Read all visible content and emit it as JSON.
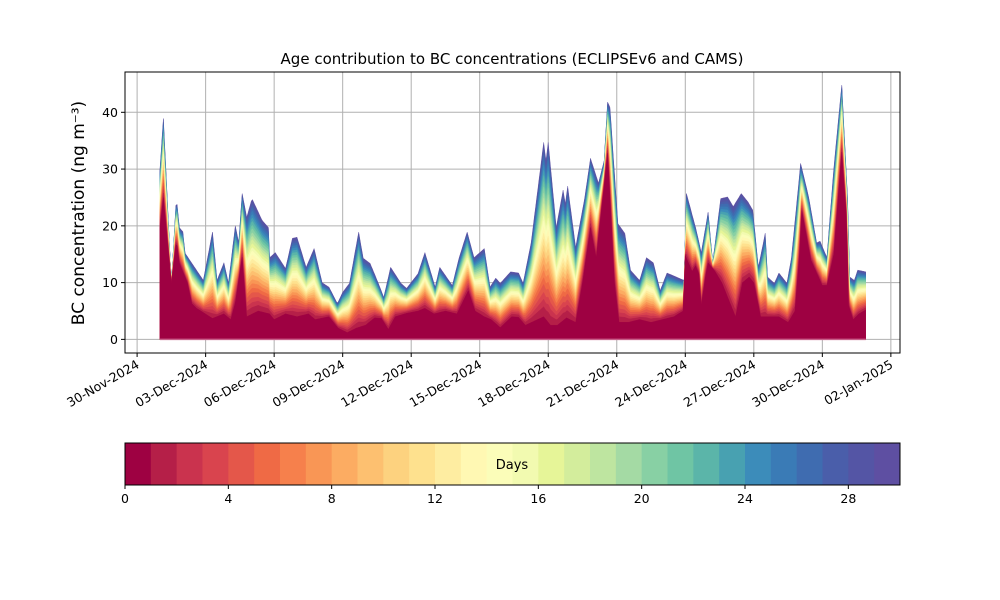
{
  "chart_data": {
    "type": "area",
    "stacked": true,
    "title": "Age contribution to BC concentrations (ECLIPSEv6 and CAMS)",
    "ylabel": "BC concentration (ng m⁻³)",
    "xlabel": "",
    "x_unit": "days since 30-Nov-2024",
    "xlim": [
      -0.53,
      33.4
    ],
    "ylim": [
      -2.4,
      47.1
    ],
    "grid": true,
    "x_ticks": [
      {
        "day": 0,
        "label": "30-Nov-2024"
      },
      {
        "day": 3,
        "label": "03-Dec-2024"
      },
      {
        "day": 6,
        "label": "06-Dec-2024"
      },
      {
        "day": 9,
        "label": "09-Dec-2024"
      },
      {
        "day": 12,
        "label": "12-Dec-2024"
      },
      {
        "day": 15,
        "label": "15-Dec-2024"
      },
      {
        "day": 18,
        "label": "18-Dec-2024"
      },
      {
        "day": 21,
        "label": "21-Dec-2024"
      },
      {
        "day": 24,
        "label": "24-Dec-2024"
      },
      {
        "day": 27,
        "label": "27-Dec-2024"
      },
      {
        "day": 30,
        "label": "30-Dec-2024"
      },
      {
        "day": 33,
        "label": "02-Jan-2025"
      }
    ],
    "y_ticks": [
      "0",
      "10",
      "20",
      "30",
      "40"
    ],
    "total": {
      "day": [
        1.0,
        1.15,
        1.5,
        1.72,
        1.85,
        2.0,
        2.1,
        2.6,
        2.9,
        3.3,
        3.5,
        3.8,
        4.0,
        4.3,
        4.45,
        4.6,
        4.8,
        5.03,
        5.47,
        5.75,
        5.8,
        6.05,
        6.5,
        6.8,
        7.0,
        7.4,
        7.75,
        8.1,
        8.4,
        8.77,
        9.0,
        9.3,
        9.7,
        9.9,
        10.2,
        10.55,
        10.8,
        11.1,
        11.55,
        11.8,
        12.3,
        12.6,
        13.05,
        13.25,
        13.8,
        14.1,
        14.45,
        14.75,
        15.2,
        15.45,
        15.7,
        15.9,
        16.35,
        16.7,
        16.9,
        17.25,
        17.8,
        17.9,
        18.0,
        18.35,
        18.65,
        18.75,
        18.85,
        19.2,
        19.6,
        19.85,
        20.2,
        20.45,
        20.6,
        20.7,
        21.05,
        21.35,
        21.6,
        22.0,
        22.3,
        22.6,
        22.9,
        23.2,
        23.6,
        23.95,
        24.05,
        24.45,
        24.7,
        25.0,
        25.2,
        25.55,
        25.85,
        26.1,
        26.45,
        26.75,
        26.95,
        27.2,
        27.5,
        27.6,
        27.9,
        28.1,
        28.45,
        28.65,
        29.05,
        29.4,
        29.75,
        29.9,
        30.2,
        30.5,
        30.85,
        31.1,
        31.2,
        31.4,
        31.55,
        31.9
      ],
      "value": [
        29.8,
        38.9,
        9.9,
        25,
        19.7,
        19,
        15.2,
        12.2,
        10.4,
        18.9,
        10.4,
        13.5,
        9.9,
        20,
        17,
        25.7,
        21.5,
        24.8,
        21,
        19.7,
        14.4,
        15.3,
        12.5,
        17.8,
        18,
        12.7,
        16,
        10,
        9.2,
        6.3,
        8.3,
        9.9,
        18.9,
        14.3,
        13.4,
        10,
        7.4,
        12.7,
        9.9,
        9,
        11.6,
        15.3,
        9.2,
        12.7,
        9.5,
        14.4,
        18.9,
        14.4,
        16,
        9.2,
        10.8,
        9.9,
        11.9,
        11.7,
        9.9,
        17,
        34.7,
        31.5,
        34.7,
        19.7,
        26.3,
        23.9,
        27,
        16.2,
        25,
        31.9,
        27.5,
        31.5,
        41.8,
        40.9,
        20.4,
        18.7,
        12.2,
        10.4,
        14.4,
        13.5,
        8.6,
        11.7,
        11,
        10.4,
        25.7,
        19.7,
        15.3,
        22.4,
        13.4,
        24.8,
        25.1,
        23.4,
        25.7,
        24.2,
        22.8,
        12.7,
        18.7,
        11,
        9.9,
        11.7,
        9.9,
        14.4,
        31,
        25.1,
        17,
        17.3,
        14.4,
        30,
        44.8,
        25.1,
        11,
        10.4,
        12.2,
        11.9
      ]
    },
    "age_0_1_days": {
      "day": [
        1.0,
        1.15,
        1.5,
        1.72,
        1.85,
        2.2,
        2.4,
        2.6,
        3.3,
        3.8,
        4.1,
        4.3,
        4.6,
        4.8,
        5.3,
        5.8,
        6.0,
        6.5,
        7.0,
        7.5,
        7.8,
        8.4,
        8.8,
        9.2,
        9.6,
        10.0,
        10.4,
        10.7,
        11.0,
        11.3,
        11.8,
        12.3,
        12.6,
        13.0,
        13.5,
        14.0,
        14.5,
        14.8,
        15.2,
        15.5,
        15.9,
        16.4,
        16.7,
        17.0,
        17.8,
        18.1,
        18.4,
        18.8,
        19.2,
        19.5,
        19.85,
        20.1,
        20.6,
        20.9,
        21.1,
        21.5,
        22.0,
        22.5,
        23.0,
        23.5,
        23.9,
        24.0,
        24.3,
        24.45,
        24.6,
        24.7,
        24.9,
        25.0,
        25.3,
        25.6,
        26.0,
        26.2,
        26.5,
        26.8,
        27.0,
        27.3,
        27.7,
        28.1,
        28.5,
        28.8,
        29.0,
        29.1,
        29.5,
        30.0,
        30.2,
        30.5,
        30.85,
        31.05,
        31.15,
        31.35,
        31.6,
        31.9
      ],
      "value": [
        19.7,
        25,
        10,
        17.4,
        13.5,
        10,
        6.3,
        5.5,
        3.7,
        4.5,
        3.5,
        6.5,
        14.5,
        4,
        5,
        4.5,
        3.5,
        4.5,
        4,
        4.5,
        3.5,
        4,
        2,
        1.2,
        2,
        2.5,
        3.8,
        3.7,
        1.8,
        4,
        4.6,
        5,
        5.5,
        4.5,
        5,
        4.5,
        8.6,
        5,
        4,
        3.5,
        2.1,
        4,
        3.9,
        2.5,
        4,
        2.5,
        2.5,
        3.8,
        3,
        10,
        19.7,
        14.4,
        32.8,
        10,
        3,
        3,
        3.5,
        3,
        3.5,
        4,
        5,
        14.8,
        12,
        13,
        11.5,
        6,
        11.5,
        13.5,
        12,
        10,
        6,
        4,
        10,
        11,
        10,
        4,
        4,
        4,
        3,
        5,
        15,
        22.7,
        14,
        9.5,
        9.5,
        15,
        33,
        22,
        6,
        3.5,
        4.5,
        5.2
      ]
    },
    "layer_cumulative_share": [
      0,
      0.057,
      0.1,
      0.14,
      0.186,
      0.225,
      0.265,
      0.3,
      0.34,
      0.375,
      0.41,
      0.445,
      0.48,
      0.515,
      0.55,
      0.58,
      0.615,
      0.65,
      0.68,
      0.71,
      0.745,
      0.775,
      0.81,
      0.84,
      0.87,
      0.9,
      0.93,
      0.955,
      0.985,
      1
    ],
    "colorbar": {
      "label": "Days",
      "range": [
        0,
        30
      ],
      "ticks": [
        "0",
        "4",
        "8",
        "12",
        "16",
        "20",
        "24",
        "28"
      ],
      "colors": [
        "#9e0142",
        "#b51f48",
        "#ca334e",
        "#d9444e",
        "#e4574a",
        "#ef6a45",
        "#f6804c",
        "#f99655",
        "#fcac62",
        "#fdc070",
        "#fdd27f",
        "#fee18e",
        "#feeda1",
        "#fff8b3",
        "#fbfdb9",
        "#f2fab0",
        "#e6f598",
        "#d3ed9c",
        "#bee5a0",
        "#a4daa4",
        "#88d0a4",
        "#6fc5a4",
        "#5bb5a9",
        "#48a1b1",
        "#3c8cba",
        "#3a7bb6",
        "#3f6cb0",
        "#4a5eaa",
        "#5455a5",
        "#5e4fa2"
      ]
    }
  }
}
